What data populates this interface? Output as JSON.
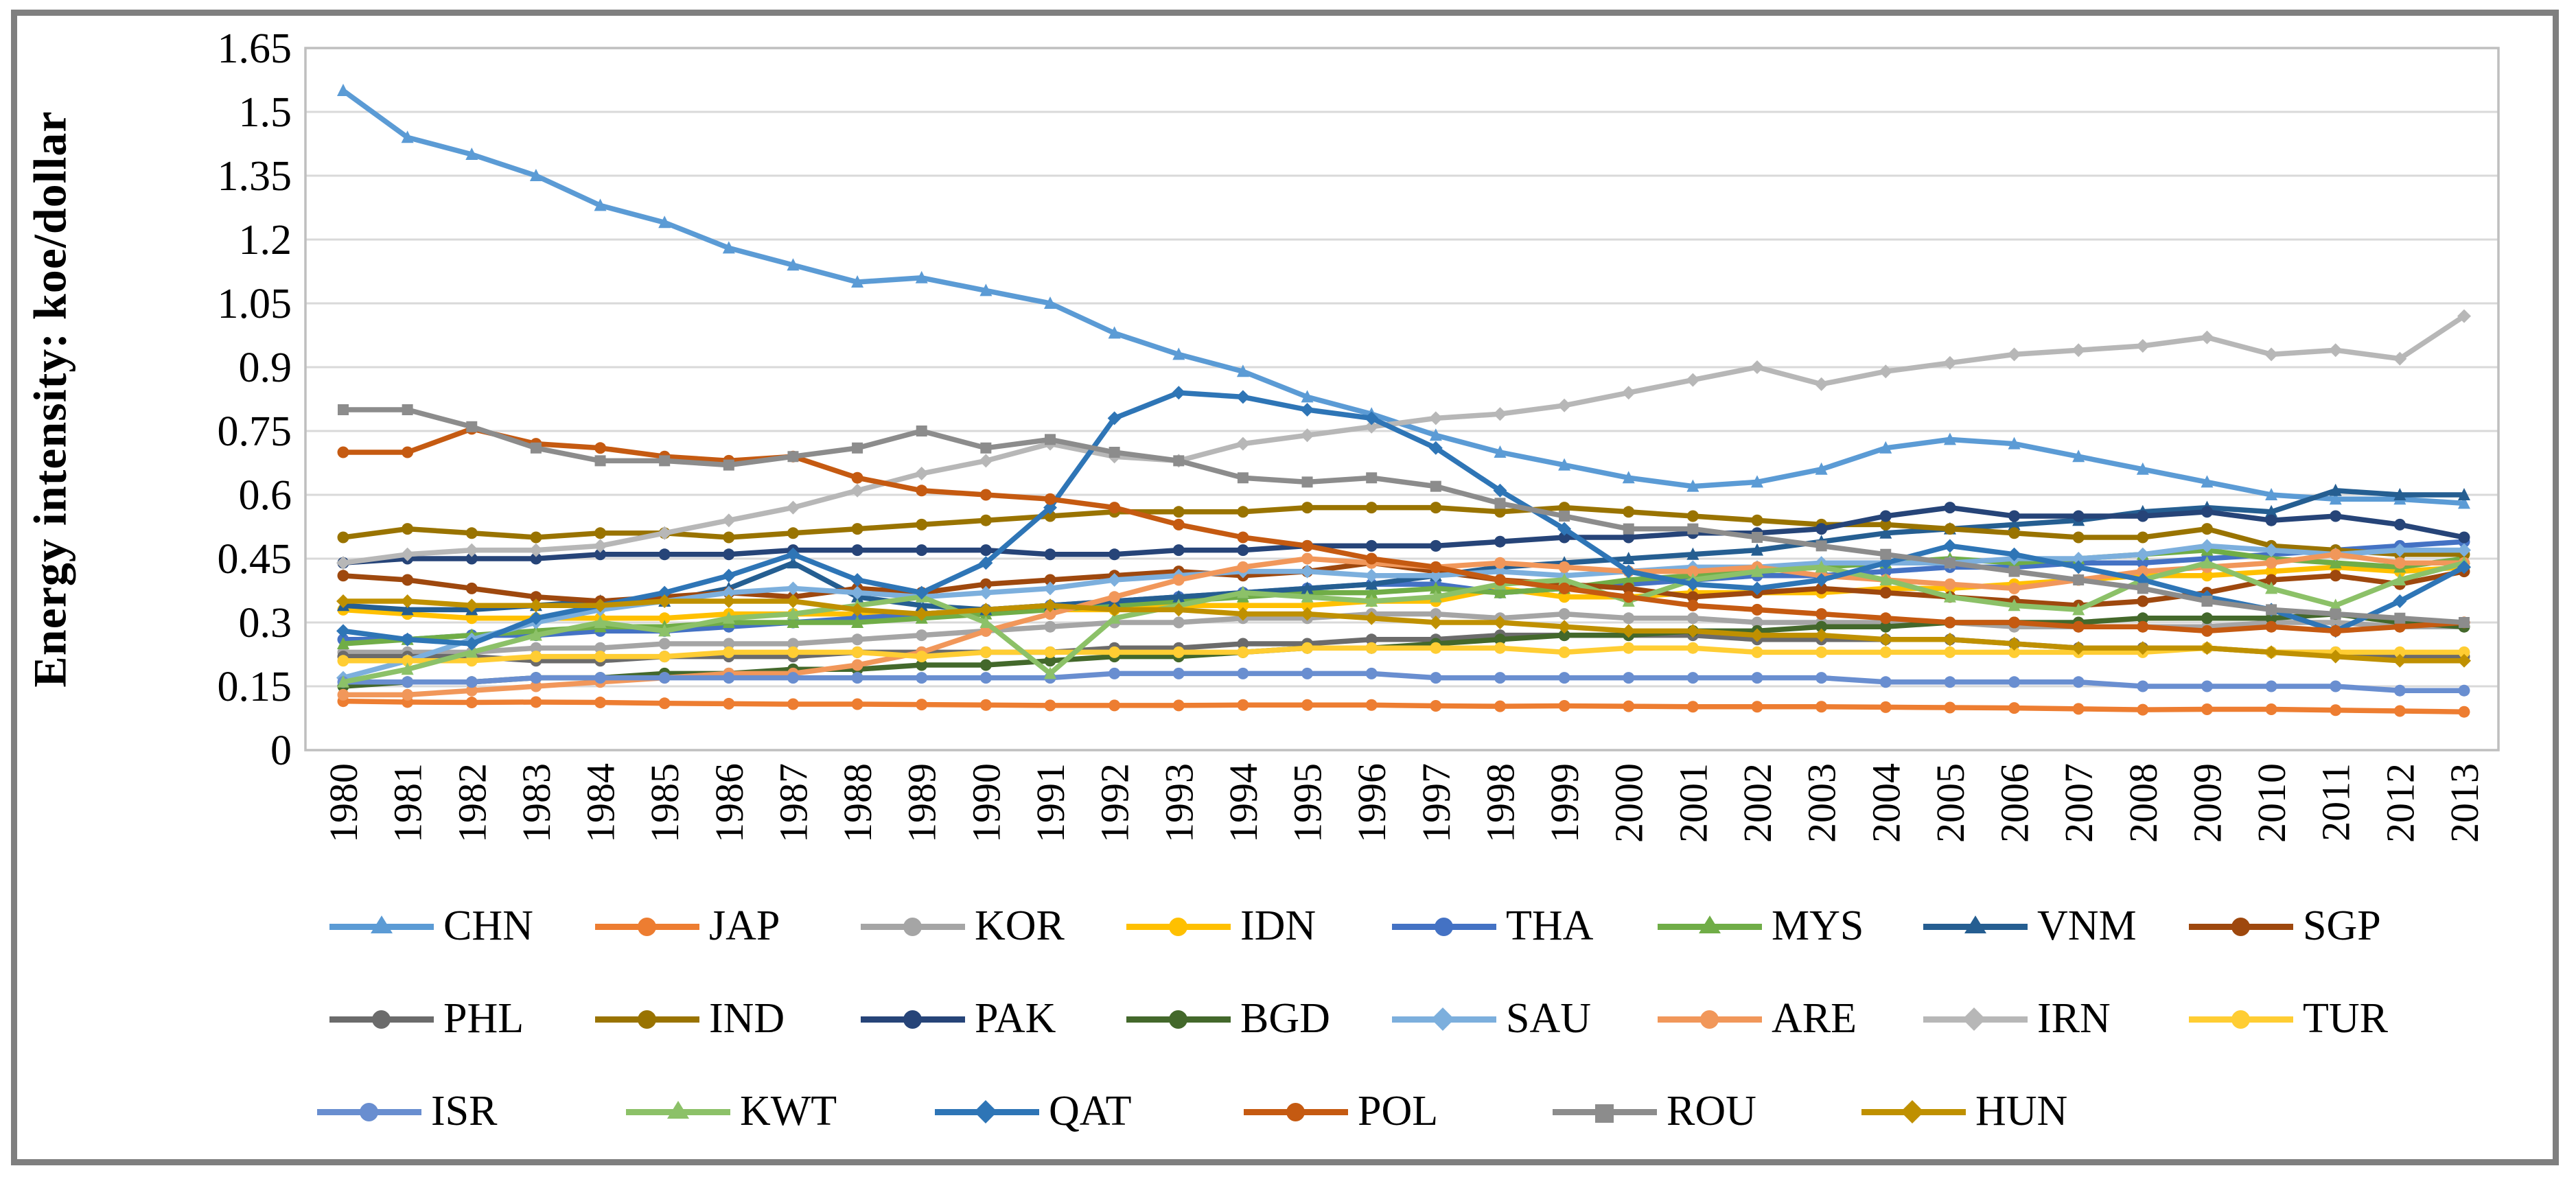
{
  "chart_data": {
    "type": "line",
    "title": "",
    "xlabel": "",
    "ylabel": "Energy intensity: koe/dollar",
    "ylim": [
      0,
      1.65
    ],
    "ytick_step": 0.15,
    "yticks": [
      "1.65",
      "1.5",
      "1.35",
      "1.2",
      "1.05",
      "0.9",
      "0.75",
      "0.6",
      "0.45",
      "0.3",
      "0.15",
      "0"
    ],
    "grid": "horizontal",
    "legend_position": "bottom",
    "x": [
      1980,
      1981,
      1982,
      1983,
      1984,
      1985,
      1986,
      1987,
      1988,
      1989,
      1990,
      1991,
      1992,
      1993,
      1994,
      1995,
      1996,
      1997,
      1998,
      1999,
      2000,
      2001,
      2002,
      2003,
      2004,
      2005,
      2006,
      2007,
      2008,
      2009,
      2010,
      2011,
      2012,
      2013
    ],
    "series": [
      {
        "name": "CHN",
        "color": "#5B9BD5",
        "marker": "triangle",
        "values": [
          1.55,
          1.44,
          1.4,
          1.35,
          1.28,
          1.24,
          1.18,
          1.14,
          1.1,
          1.11,
          1.08,
          1.05,
          0.98,
          0.93,
          0.89,
          0.83,
          0.79,
          0.74,
          0.7,
          0.67,
          0.64,
          0.62,
          0.63,
          0.66,
          0.71,
          0.73,
          0.72,
          0.69,
          0.66,
          0.63,
          0.6,
          0.59,
          0.59,
          0.58
        ]
      },
      {
        "name": "JAP",
        "color": "#ED7D31",
        "marker": "circle",
        "values": [
          0.115,
          0.113,
          0.112,
          0.113,
          0.112,
          0.11,
          0.109,
          0.108,
          0.108,
          0.107,
          0.106,
          0.105,
          0.105,
          0.105,
          0.106,
          0.106,
          0.106,
          0.104,
          0.103,
          0.104,
          0.103,
          0.102,
          0.102,
          0.102,
          0.101,
          0.1,
          0.099,
          0.097,
          0.095,
          0.096,
          0.096,
          0.094,
          0.092,
          0.09
        ]
      },
      {
        "name": "KOR",
        "color": "#A5A5A5",
        "marker": "circle",
        "values": [
          0.23,
          0.23,
          0.23,
          0.24,
          0.24,
          0.25,
          0.25,
          0.25,
          0.26,
          0.27,
          0.28,
          0.29,
          0.3,
          0.3,
          0.31,
          0.31,
          0.32,
          0.32,
          0.31,
          0.32,
          0.31,
          0.31,
          0.3,
          0.3,
          0.3,
          0.3,
          0.29,
          0.29,
          0.29,
          0.29,
          0.3,
          0.3,
          0.29,
          0.29
        ]
      },
      {
        "name": "IDN",
        "color": "#FFC000",
        "marker": "circle",
        "values": [
          0.33,
          0.32,
          0.31,
          0.31,
          0.31,
          0.31,
          0.32,
          0.32,
          0.32,
          0.32,
          0.33,
          0.33,
          0.33,
          0.34,
          0.34,
          0.34,
          0.35,
          0.35,
          0.38,
          0.36,
          0.36,
          0.37,
          0.37,
          0.37,
          0.38,
          0.38,
          0.39,
          0.4,
          0.41,
          0.41,
          0.42,
          0.43,
          0.42,
          0.43
        ]
      },
      {
        "name": "THA",
        "color": "#4472C4",
        "marker": "circle",
        "values": [
          0.26,
          0.26,
          0.27,
          0.27,
          0.28,
          0.28,
          0.29,
          0.3,
          0.31,
          0.32,
          0.33,
          0.34,
          0.35,
          0.36,
          0.37,
          0.38,
          0.39,
          0.39,
          0.37,
          0.38,
          0.39,
          0.4,
          0.41,
          0.41,
          0.42,
          0.43,
          0.43,
          0.44,
          0.44,
          0.45,
          0.46,
          0.47,
          0.48,
          0.49
        ]
      },
      {
        "name": "MYS",
        "color": "#70AD47",
        "marker": "triangle",
        "values": [
          0.25,
          0.26,
          0.27,
          0.28,
          0.29,
          0.29,
          0.3,
          0.3,
          0.3,
          0.31,
          0.32,
          0.33,
          0.34,
          0.35,
          0.36,
          0.37,
          0.37,
          0.38,
          0.37,
          0.38,
          0.4,
          0.41,
          0.42,
          0.43,
          0.44,
          0.45,
          0.44,
          0.45,
          0.46,
          0.47,
          0.45,
          0.44,
          0.43,
          0.45
        ]
      },
      {
        "name": "VNM",
        "color": "#255E91",
        "marker": "triangle",
        "values": [
          0.34,
          0.33,
          0.33,
          0.34,
          0.35,
          0.35,
          0.38,
          0.44,
          0.36,
          0.34,
          0.33,
          0.34,
          0.35,
          0.36,
          0.37,
          0.38,
          0.39,
          0.41,
          0.43,
          0.44,
          0.45,
          0.46,
          0.47,
          0.49,
          0.51,
          0.52,
          0.53,
          0.54,
          0.56,
          0.57,
          0.56,
          0.61,
          0.6,
          0.6
        ]
      },
      {
        "name": "SGP",
        "color": "#9E480E",
        "marker": "circle",
        "values": [
          0.41,
          0.4,
          0.38,
          0.36,
          0.35,
          0.36,
          0.37,
          0.36,
          0.38,
          0.37,
          0.39,
          0.4,
          0.41,
          0.42,
          0.41,
          0.42,
          0.44,
          0.42,
          0.4,
          0.39,
          0.38,
          0.36,
          0.37,
          0.38,
          0.37,
          0.36,
          0.35,
          0.34,
          0.35,
          0.37,
          0.4,
          0.41,
          0.39,
          0.42
        ]
      },
      {
        "name": "PHL",
        "color": "#6B6B6B",
        "marker": "circle",
        "values": [
          0.22,
          0.22,
          0.22,
          0.21,
          0.21,
          0.22,
          0.22,
          0.22,
          0.23,
          0.23,
          0.23,
          0.23,
          0.24,
          0.24,
          0.25,
          0.25,
          0.26,
          0.26,
          0.27,
          0.27,
          0.27,
          0.27,
          0.26,
          0.26,
          0.26,
          0.26,
          0.25,
          0.24,
          0.24,
          0.24,
          0.23,
          0.23,
          0.22,
          0.22
        ]
      },
      {
        "name": "IND",
        "color": "#997300",
        "marker": "circle",
        "values": [
          0.5,
          0.52,
          0.51,
          0.5,
          0.51,
          0.51,
          0.5,
          0.51,
          0.52,
          0.53,
          0.54,
          0.55,
          0.56,
          0.56,
          0.56,
          0.57,
          0.57,
          0.57,
          0.56,
          0.57,
          0.56,
          0.55,
          0.54,
          0.53,
          0.53,
          0.52,
          0.51,
          0.5,
          0.5,
          0.52,
          0.48,
          0.47,
          0.46,
          0.46
        ]
      },
      {
        "name": "PAK",
        "color": "#264478",
        "marker": "circle",
        "values": [
          0.44,
          0.45,
          0.45,
          0.45,
          0.46,
          0.46,
          0.46,
          0.47,
          0.47,
          0.47,
          0.47,
          0.46,
          0.46,
          0.47,
          0.47,
          0.48,
          0.48,
          0.48,
          0.49,
          0.5,
          0.5,
          0.51,
          0.51,
          0.52,
          0.55,
          0.57,
          0.55,
          0.55,
          0.55,
          0.56,
          0.54,
          0.55,
          0.53,
          0.5
        ]
      },
      {
        "name": "BGD",
        "color": "#43682B",
        "marker": "circle",
        "values": [
          0.15,
          0.16,
          0.16,
          0.17,
          0.17,
          0.18,
          0.18,
          0.19,
          0.19,
          0.2,
          0.2,
          0.21,
          0.22,
          0.22,
          0.23,
          0.24,
          0.24,
          0.25,
          0.26,
          0.27,
          0.27,
          0.28,
          0.28,
          0.29,
          0.29,
          0.3,
          0.3,
          0.3,
          0.31,
          0.31,
          0.31,
          0.32,
          0.3,
          0.29
        ]
      },
      {
        "name": "SAU",
        "color": "#7CAFDD",
        "marker": "diamond",
        "values": [
          0.17,
          0.21,
          0.26,
          0.3,
          0.33,
          0.35,
          0.37,
          0.38,
          0.37,
          0.36,
          0.37,
          0.38,
          0.4,
          0.41,
          0.42,
          0.42,
          0.41,
          0.41,
          0.42,
          0.41,
          0.42,
          0.43,
          0.43,
          0.44,
          0.44,
          0.44,
          0.45,
          0.45,
          0.46,
          0.48,
          0.47,
          0.46,
          0.47,
          0.47
        ]
      },
      {
        "name": "ARE",
        "color": "#F1975A",
        "marker": "circle",
        "values": [
          0.13,
          0.13,
          0.14,
          0.15,
          0.16,
          0.17,
          0.18,
          0.18,
          0.2,
          0.23,
          0.28,
          0.32,
          0.36,
          0.4,
          0.43,
          0.45,
          0.44,
          0.43,
          0.44,
          0.43,
          0.42,
          0.42,
          0.43,
          0.41,
          0.4,
          0.39,
          0.38,
          0.4,
          0.42,
          0.43,
          0.44,
          0.46,
          0.44,
          0.44
        ]
      },
      {
        "name": "IRN",
        "color": "#B7B7B7",
        "marker": "diamond",
        "values": [
          0.44,
          0.46,
          0.47,
          0.47,
          0.48,
          0.51,
          0.54,
          0.57,
          0.61,
          0.65,
          0.68,
          0.72,
          0.69,
          0.68,
          0.72,
          0.74,
          0.76,
          0.78,
          0.79,
          0.81,
          0.84,
          0.87,
          0.9,
          0.86,
          0.89,
          0.91,
          0.93,
          0.94,
          0.95,
          0.97,
          0.93,
          0.94,
          0.92,
          1.02
        ]
      },
      {
        "name": "TUR",
        "color": "#FFCD33",
        "marker": "circle",
        "values": [
          0.21,
          0.21,
          0.21,
          0.22,
          0.22,
          0.22,
          0.23,
          0.23,
          0.23,
          0.22,
          0.23,
          0.23,
          0.23,
          0.23,
          0.23,
          0.24,
          0.24,
          0.24,
          0.24,
          0.23,
          0.24,
          0.24,
          0.23,
          0.23,
          0.23,
          0.23,
          0.23,
          0.23,
          0.23,
          0.24,
          0.23,
          0.23,
          0.23,
          0.23
        ]
      },
      {
        "name": "ISR",
        "color": "#698ED0",
        "marker": "circle",
        "values": [
          0.16,
          0.16,
          0.16,
          0.17,
          0.17,
          0.17,
          0.17,
          0.17,
          0.17,
          0.17,
          0.17,
          0.17,
          0.18,
          0.18,
          0.18,
          0.18,
          0.18,
          0.17,
          0.17,
          0.17,
          0.17,
          0.17,
          0.17,
          0.17,
          0.16,
          0.16,
          0.16,
          0.16,
          0.15,
          0.15,
          0.15,
          0.15,
          0.14,
          0.14
        ]
      },
      {
        "name": "KWT",
        "color": "#8CC168",
        "marker": "triangle",
        "values": [
          0.16,
          0.19,
          0.23,
          0.27,
          0.3,
          0.28,
          0.31,
          0.32,
          0.34,
          0.36,
          0.3,
          0.18,
          0.31,
          0.34,
          0.37,
          0.36,
          0.35,
          0.36,
          0.39,
          0.4,
          0.35,
          0.4,
          0.42,
          0.43,
          0.4,
          0.36,
          0.34,
          0.33,
          0.4,
          0.44,
          0.38,
          0.34,
          0.4,
          0.44
        ]
      },
      {
        "name": "QAT",
        "color": "#2E75B6",
        "marker": "diamond",
        "values": [
          0.28,
          0.26,
          0.25,
          0.31,
          0.34,
          0.37,
          0.41,
          0.46,
          0.4,
          0.37,
          0.44,
          0.57,
          0.78,
          0.84,
          0.83,
          0.8,
          0.78,
          0.71,
          0.61,
          0.52,
          0.42,
          0.39,
          0.38,
          0.4,
          0.44,
          0.48,
          0.46,
          0.43,
          0.4,
          0.36,
          0.33,
          0.28,
          0.35,
          0.43
        ]
      },
      {
        "name": "POL",
        "color": "#C55A11",
        "marker": "circle",
        "values": [
          0.7,
          0.7,
          0.755,
          0.72,
          0.71,
          0.69,
          0.68,
          0.69,
          0.64,
          0.61,
          0.6,
          0.59,
          0.57,
          0.53,
          0.5,
          0.48,
          0.45,
          0.43,
          0.4,
          0.38,
          0.36,
          0.34,
          0.33,
          0.32,
          0.31,
          0.3,
          0.3,
          0.29,
          0.29,
          0.28,
          0.29,
          0.28,
          0.29,
          0.3
        ]
      },
      {
        "name": "ROU",
        "color": "#8C8C8C",
        "marker": "square",
        "values": [
          0.8,
          0.8,
          0.76,
          0.71,
          0.68,
          0.68,
          0.67,
          0.69,
          0.71,
          0.75,
          0.71,
          0.73,
          0.7,
          0.68,
          0.64,
          0.63,
          0.64,
          0.62,
          0.58,
          0.55,
          0.52,
          0.52,
          0.5,
          0.48,
          0.46,
          0.44,
          0.42,
          0.4,
          0.38,
          0.35,
          0.33,
          0.32,
          0.31,
          0.3
        ]
      },
      {
        "name": "HUN",
        "color": "#BF9000",
        "marker": "diamond",
        "values": [
          0.35,
          0.35,
          0.34,
          0.34,
          0.34,
          0.35,
          0.35,
          0.35,
          0.33,
          0.32,
          0.33,
          0.34,
          0.33,
          0.33,
          0.32,
          0.32,
          0.31,
          0.3,
          0.3,
          0.29,
          0.28,
          0.28,
          0.27,
          0.27,
          0.26,
          0.26,
          0.25,
          0.24,
          0.24,
          0.24,
          0.23,
          0.22,
          0.21,
          0.21
        ]
      }
    ],
    "legend_rows": [
      8,
      8,
      6
    ]
  },
  "style": {
    "grid_color": "#D9D9D9",
    "plot_border_color": "#BFBFBF",
    "frame_color": "#7F7F7F",
    "text_color": "#000000"
  }
}
